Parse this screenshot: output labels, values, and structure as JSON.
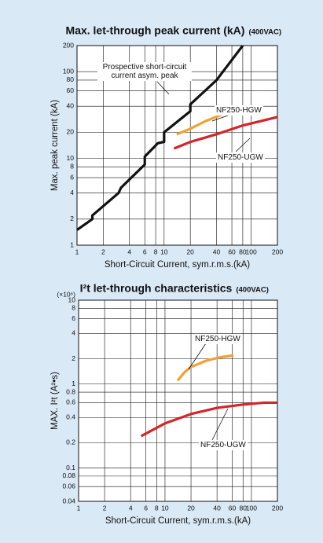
{
  "chart_data": [
    {
      "type": "line",
      "title": "Max. let-through peak current (kA)",
      "subtitle": "(400VAC)",
      "x_label": "Short-Circuit Current, sym.r.m.s.(kA)",
      "y_label": "Max. peak current  (kA)",
      "xscale": "log",
      "yscale": "log",
      "grid": true,
      "xlim": [
        1,
        200
      ],
      "xticks": [
        1,
        2,
        4,
        6,
        8,
        10,
        20,
        40,
        60,
        80,
        100,
        200
      ],
      "ylim": [
        1,
        200
      ],
      "yticks": [
        1,
        2,
        4,
        6,
        8,
        10,
        20,
        40,
        60,
        80,
        100,
        200
      ],
      "series": [
        {
          "name": "Prospective short-circuit current asym. peak",
          "color": "#111111",
          "x": [
            1,
            1.5,
            1.5,
            3,
            3.2,
            6,
            6,
            8.5,
            10,
            10,
            20,
            20,
            40,
            80
          ],
          "values": [
            1.5,
            2,
            2.2,
            4,
            4.6,
            8.5,
            10.5,
            15,
            15.5,
            20,
            35,
            42,
            80,
            200
          ]
        },
        {
          "name": "NF250-HGW",
          "color": "#f2a032",
          "x": [
            14,
            20,
            30,
            50,
            75
          ],
          "values": [
            19,
            22,
            27,
            33,
            38
          ]
        },
        {
          "name": "NF250-UGW",
          "color": "#d2262a",
          "x": [
            13,
            20,
            40,
            80,
            200
          ],
          "values": [
            13,
            15.5,
            19,
            24,
            30
          ]
        }
      ]
    },
    {
      "type": "line",
      "title": "I²t let-through characteristics",
      "subtitle": "(400VAC)",
      "y_unit": "(×10⁶)",
      "x_label": "Short-Circuit Current, sym.r.m.s.(kA)",
      "y_label": "MAX. I²t (A²•s)",
      "xscale": "log",
      "yscale": "log",
      "grid": true,
      "xlim": [
        1,
        200
      ],
      "xticks": [
        1,
        2,
        4,
        6,
        8,
        10,
        20,
        40,
        60,
        80,
        100,
        200
      ],
      "ylim": [
        0.04,
        10
      ],
      "yticks": [
        0.04,
        0.06,
        0.08,
        0.1,
        0.2,
        0.4,
        0.6,
        0.8,
        1,
        2,
        4,
        6,
        8,
        10
      ],
      "series": [
        {
          "name": "NF250-HGW",
          "color": "#f2a032",
          "x": [
            14,
            17,
            20,
            30,
            45,
            62
          ],
          "values": [
            1.1,
            1.4,
            1.6,
            1.9,
            2.1,
            2.2
          ]
        },
        {
          "name": "NF250-UGW",
          "color": "#d2262a",
          "x": [
            5.3,
            10,
            20,
            40,
            80,
            140,
            200
          ],
          "values": [
            0.24,
            0.34,
            0.44,
            0.52,
            0.57,
            0.6,
            0.6
          ]
        }
      ]
    }
  ]
}
